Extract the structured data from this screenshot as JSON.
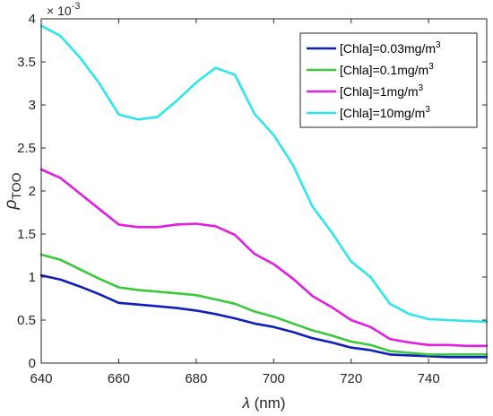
{
  "chart_data": {
    "type": "line",
    "title": "",
    "xlabel_symbol": "λ",
    "xlabel_unit": " (nm)",
    "ylabel_base": "ρ",
    "ylabel_sub": "TOO",
    "y_exponent_base": "× 10",
    "y_exponent_power": "-3",
    "xlim": [
      640,
      755
    ],
    "ylim": [
      0,
      4
    ],
    "x_ticks": [
      640,
      660,
      680,
      700,
      720,
      740
    ],
    "y_ticks": [
      0,
      0.5,
      1,
      1.5,
      2,
      2.5,
      3,
      3.5,
      4
    ],
    "y_tick_labels": [
      "0",
      "0.5",
      "1",
      "1.5",
      "2",
      "2.5",
      "3",
      "3.5",
      "4"
    ],
    "grid": false,
    "legend_position": "top-right",
    "x": [
      640,
      645,
      650,
      655,
      660,
      665,
      670,
      675,
      680,
      685,
      690,
      695,
      700,
      705,
      710,
      715,
      720,
      725,
      730,
      735,
      740,
      745,
      750,
      755
    ],
    "series": [
      {
        "name": "[Chla]=0.03mg/m",
        "name_sup": "3",
        "color": "#0f1fb8",
        "values": [
          1.02,
          0.97,
          0.89,
          0.8,
          0.7,
          0.68,
          0.66,
          0.64,
          0.61,
          0.57,
          0.52,
          0.46,
          0.42,
          0.36,
          0.29,
          0.24,
          0.18,
          0.15,
          0.1,
          0.09,
          0.08,
          0.07,
          0.07,
          0.07
        ]
      },
      {
        "name": "[Chla]=0.1mg/m",
        "name_sup": "3",
        "color": "#3cc83c",
        "values": [
          1.26,
          1.2,
          1.09,
          0.98,
          0.88,
          0.85,
          0.83,
          0.81,
          0.79,
          0.74,
          0.69,
          0.6,
          0.54,
          0.46,
          0.38,
          0.32,
          0.25,
          0.21,
          0.14,
          0.12,
          0.1,
          0.1,
          0.1,
          0.1
        ]
      },
      {
        "name": "[Chla]=1mg/m",
        "name_sup": "3",
        "color": "#e11ee1",
        "values": [
          2.25,
          2.15,
          1.97,
          1.79,
          1.61,
          1.58,
          1.58,
          1.61,
          1.62,
          1.59,
          1.49,
          1.27,
          1.15,
          0.98,
          0.78,
          0.65,
          0.5,
          0.42,
          0.28,
          0.24,
          0.21,
          0.21,
          0.2,
          0.2
        ]
      },
      {
        "name": "[Chla]=10mg/m",
        "name_sup": "3",
        "color": "#2ee6ea",
        "values": [
          3.92,
          3.8,
          3.55,
          3.25,
          2.89,
          2.83,
          2.86,
          3.05,
          3.26,
          3.43,
          3.35,
          2.9,
          2.65,
          2.3,
          1.82,
          1.52,
          1.18,
          1.0,
          0.69,
          0.57,
          0.51,
          0.5,
          0.49,
          0.48
        ]
      }
    ]
  }
}
